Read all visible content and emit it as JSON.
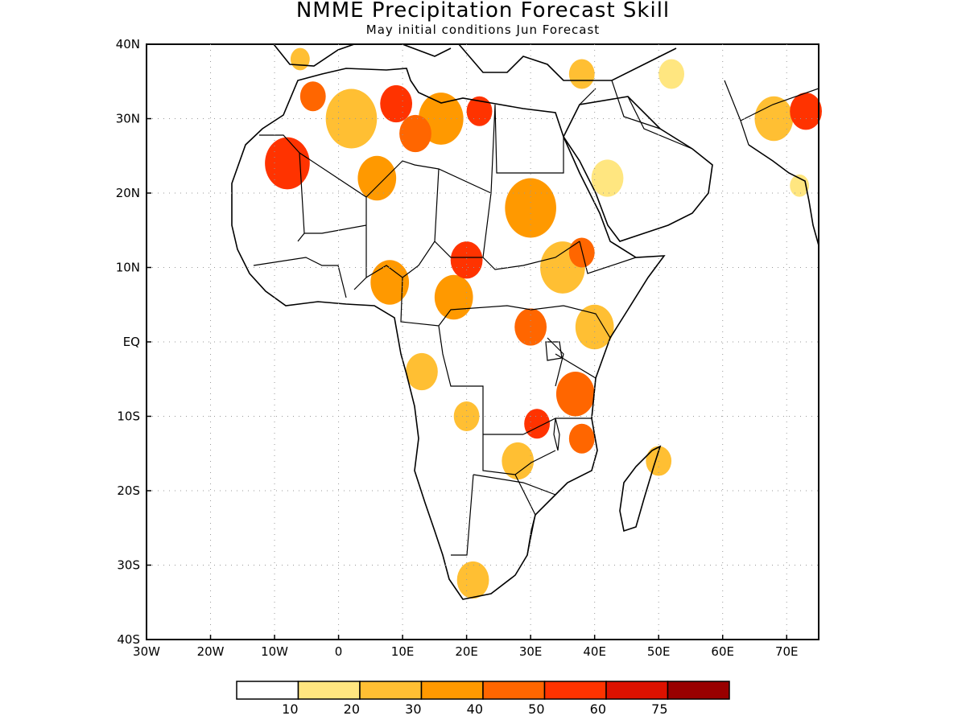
{
  "title": "NMME Precipitation Forecast Skill",
  "subtitle": "May initial conditions  Jun Forecast",
  "map": {
    "lon_range": [
      -30,
      75
    ],
    "lat_range": [
      -40,
      40
    ],
    "x_ticks": [
      "30W",
      "20W",
      "10W",
      "0",
      "10E",
      "20E",
      "30E",
      "40E",
      "50E",
      "60E",
      "70E"
    ],
    "y_ticks": [
      "40N",
      "30N",
      "20N",
      "10N",
      "EQ",
      "10S",
      "20S",
      "30S",
      "40S"
    ],
    "grid": "dotted"
  },
  "colorbar": {
    "colors": [
      "#ffffff",
      "#ffe680",
      "#ffbf33",
      "#ff9900",
      "#ff6600",
      "#ff3300",
      "#dd1100",
      "#990000"
    ],
    "labels": [
      "10",
      "20",
      "30",
      "40",
      "50",
      "60",
      "75"
    ]
  },
  "skill_regions": [
    {
      "lon": -8,
      "lat": 24,
      "level": 5,
      "r": 3.5
    },
    {
      "lon": 9,
      "lat": 32,
      "level": 5,
      "r": 2.5
    },
    {
      "lon": 22,
      "lat": 31,
      "level": 5,
      "r": 2
    },
    {
      "lon": 20,
      "lat": 11,
      "level": 5,
      "r": 2.5
    },
    {
      "lon": 31,
      "lat": -11,
      "level": 5,
      "r": 2
    },
    {
      "lon": 73,
      "lat": 31,
      "level": 5,
      "r": 2.5
    },
    {
      "lon": 38,
      "lat": -13,
      "level": 4,
      "r": 2
    },
    {
      "lon": -4,
      "lat": 33,
      "level": 4,
      "r": 2
    },
    {
      "lon": 12,
      "lat": 28,
      "level": 4,
      "r": 2.5
    },
    {
      "lon": 30,
      "lat": 2,
      "level": 4,
      "r": 2.5
    },
    {
      "lon": 37,
      "lat": -7,
      "level": 4,
      "r": 3
    },
    {
      "lon": 38,
      "lat": 12,
      "level": 4,
      "r": 2
    },
    {
      "lon": 8,
      "lat": 8,
      "level": 3,
      "r": 3
    },
    {
      "lon": 18,
      "lat": 6,
      "level": 3,
      "r": 3
    },
    {
      "lon": 30,
      "lat": 18,
      "level": 3,
      "r": 4
    },
    {
      "lon": 16,
      "lat": 30,
      "level": 3,
      "r": 3.5
    },
    {
      "lon": 6,
      "lat": 22,
      "level": 3,
      "r": 3
    },
    {
      "lon": 2,
      "lat": 30,
      "level": 2,
      "r": 4
    },
    {
      "lon": 35,
      "lat": 10,
      "level": 2,
      "r": 3.5
    },
    {
      "lon": 40,
      "lat": 2,
      "level": 2,
      "r": 3
    },
    {
      "lon": 13,
      "lat": -4,
      "level": 2,
      "r": 2.5
    },
    {
      "lon": 28,
      "lat": -16,
      "level": 2,
      "r": 2.5
    },
    {
      "lon": 20,
      "lat": -10,
      "level": 2,
      "r": 2
    },
    {
      "lon": 21,
      "lat": -32,
      "level": 2,
      "r": 2.5
    },
    {
      "lon": 68,
      "lat": 30,
      "level": 2,
      "r": 3
    },
    {
      "lon": 50,
      "lat": -16,
      "level": 2,
      "r": 2
    },
    {
      "lon": 42,
      "lat": 22,
      "level": 1,
      "r": 2.5
    },
    {
      "lon": 38,
      "lat": 36,
      "level": 2,
      "r": 2
    },
    {
      "lon": 52,
      "lat": 36,
      "level": 1,
      "r": 2
    },
    {
      "lon": -6,
      "lat": 38,
      "level": 2,
      "r": 1.5
    },
    {
      "lon": 72,
      "lat": 21,
      "level": 1,
      "r": 1.5
    }
  ]
}
